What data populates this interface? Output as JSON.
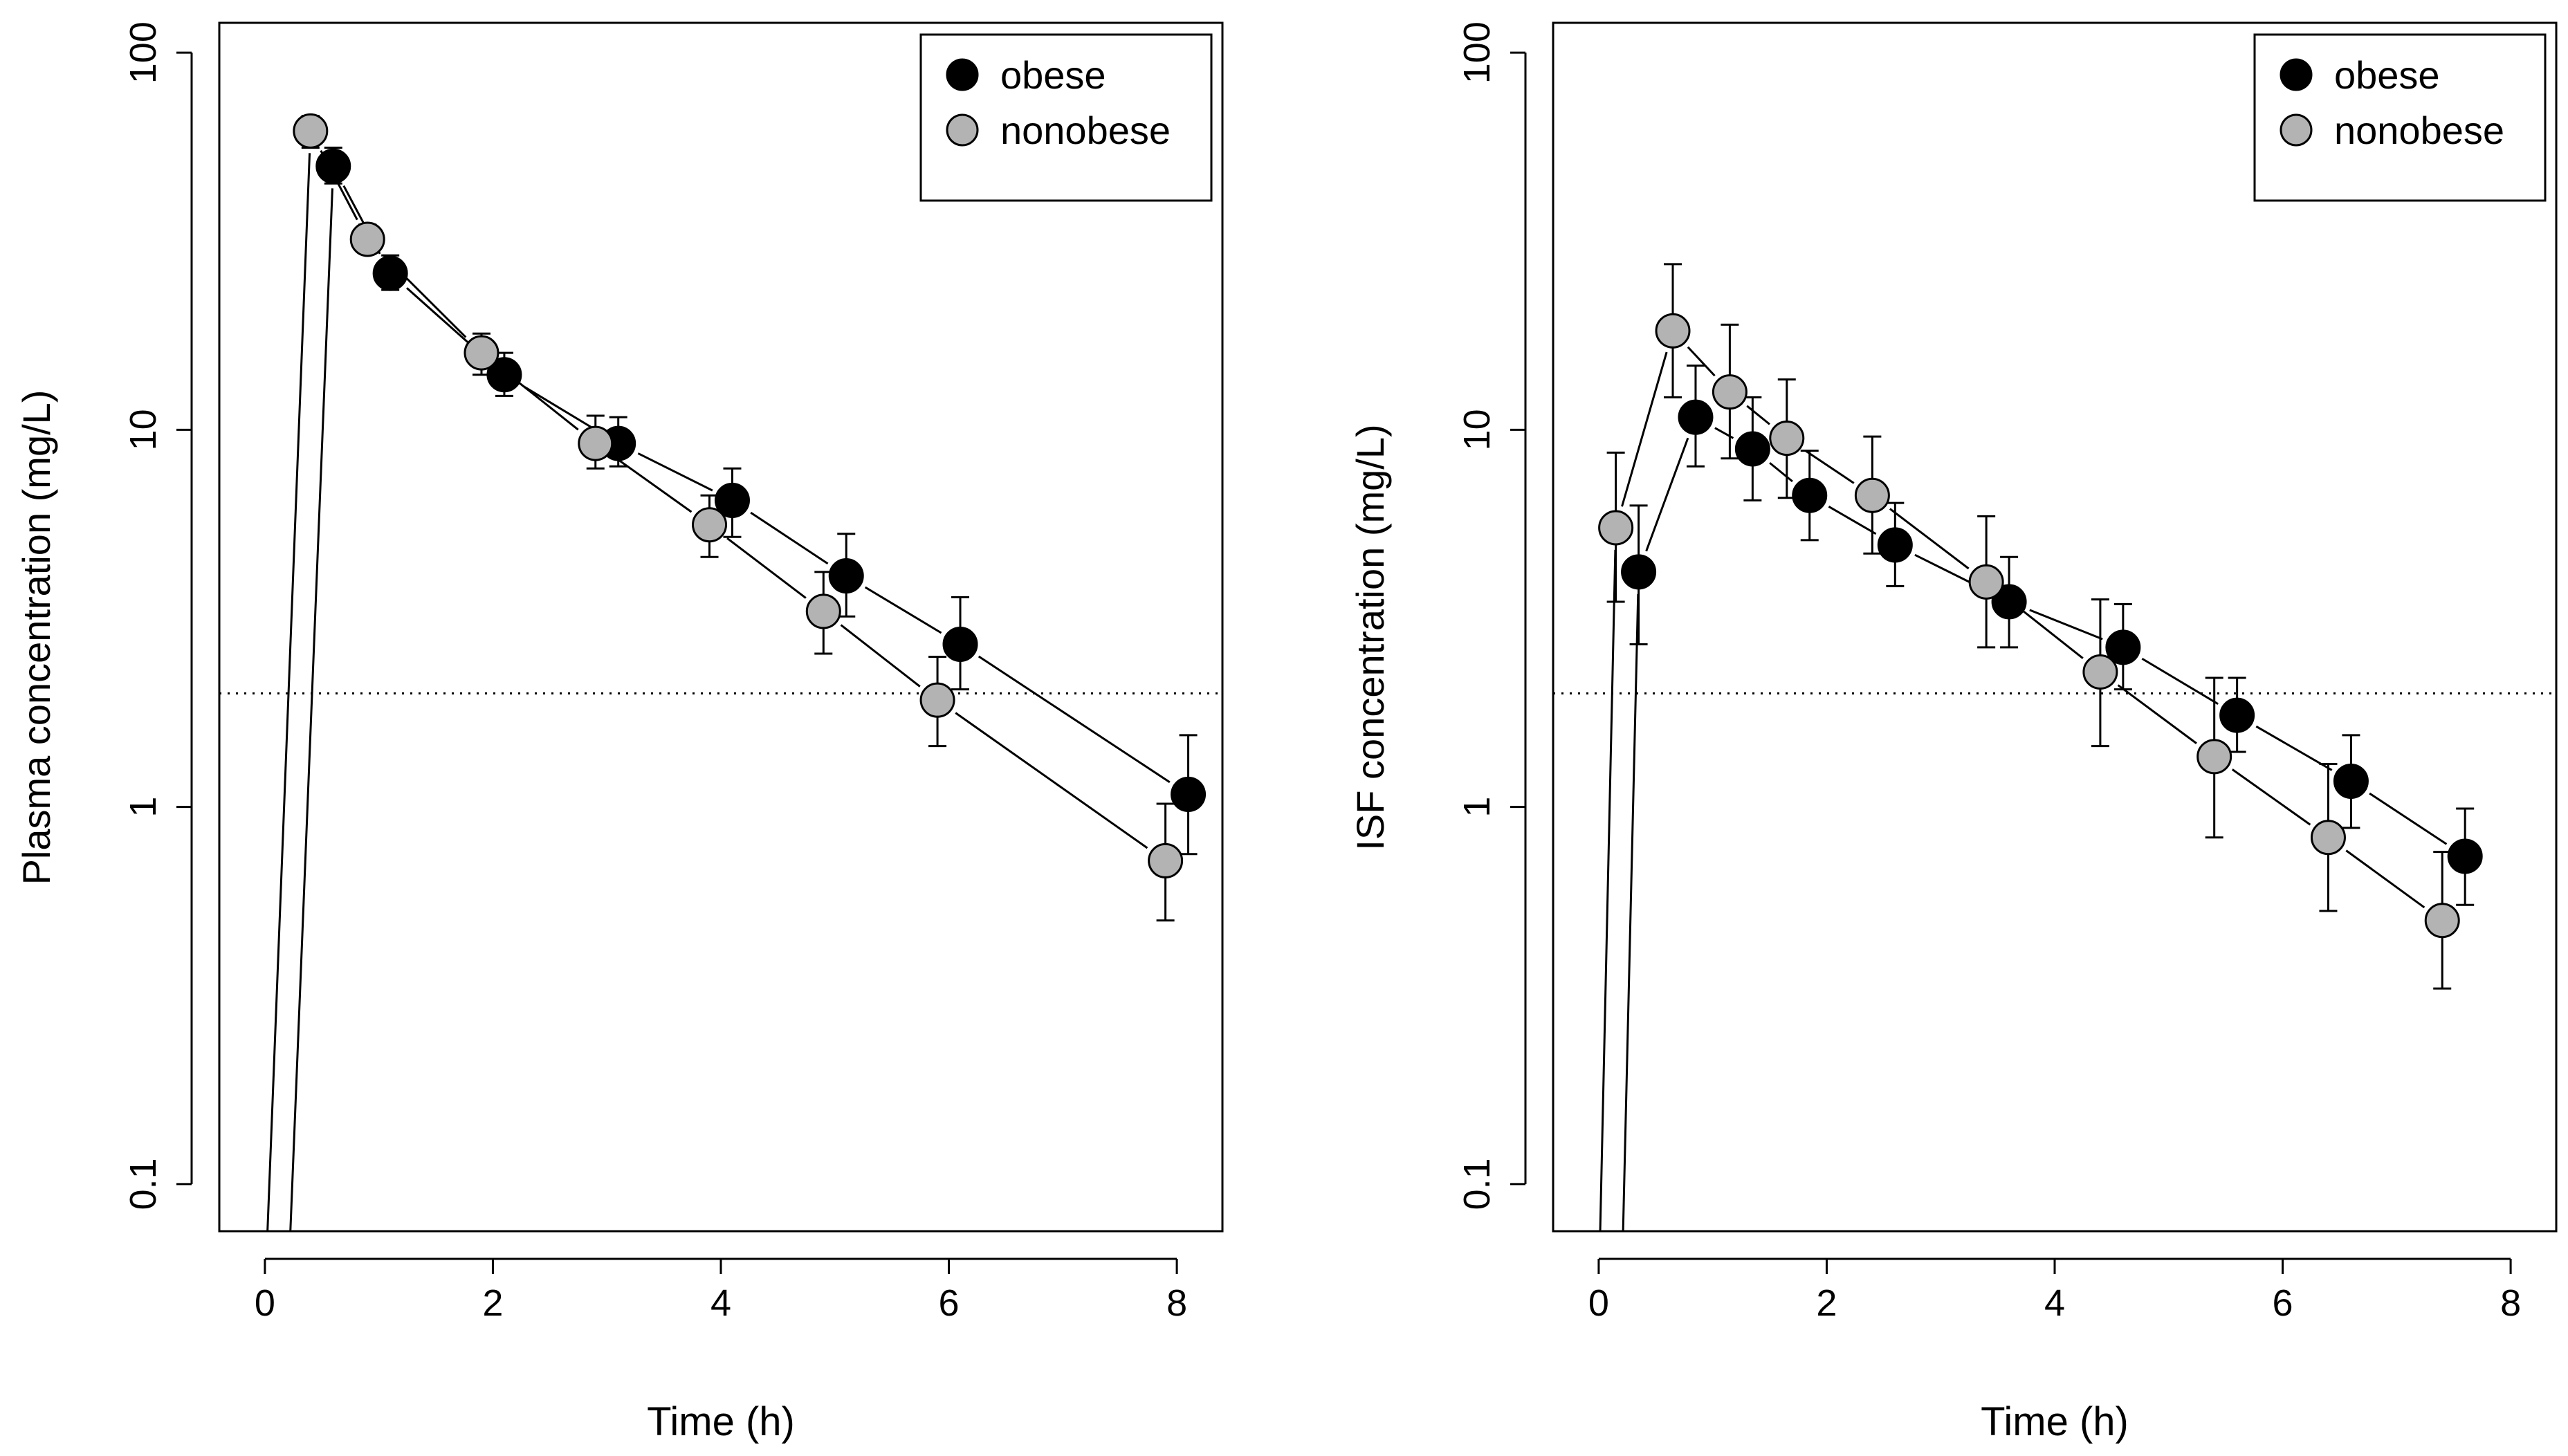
{
  "chart_data": [
    {
      "type": "line",
      "scale_y": "log",
      "xlabel": "Time (h)",
      "ylabel": "Plasma concentration (mg/L)",
      "xlim": [
        -0.4,
        8.4
      ],
      "ylim": [
        0.075,
        120
      ],
      "x_ticks": [
        0,
        2,
        4,
        6,
        8
      ],
      "x_tick_labels": [
        "0",
        "2",
        "4",
        "6",
        "8"
      ],
      "y_ticks": [
        0.1,
        1,
        10,
        100
      ],
      "y_tick_labels": [
        "0.1",
        "1",
        "10",
        "100"
      ],
      "reference_line": 2,
      "legend": {
        "position": "top-right",
        "entries": [
          "obese",
          "nonobese"
        ]
      },
      "series": [
        {
          "name": "obese",
          "color": "#000000",
          "points": [
            {
              "x": 0.6,
              "y": 50,
              "lo": 45,
              "hi": 56
            },
            {
              "x": 1.1,
              "y": 26,
              "lo": 23.5,
              "hi": 29
            },
            {
              "x": 2.1,
              "y": 14,
              "lo": 12.3,
              "hi": 16
            },
            {
              "x": 3.1,
              "y": 9.2,
              "lo": 8,
              "hi": 10.8
            },
            {
              "x": 4.1,
              "y": 6.5,
              "lo": 5.2,
              "hi": 7.9
            },
            {
              "x": 5.1,
              "y": 4.1,
              "lo": 3.2,
              "hi": 5.3
            },
            {
              "x": 6.1,
              "y": 2.7,
              "lo": 2.05,
              "hi": 3.6
            },
            {
              "x": 8.1,
              "y": 1.08,
              "lo": 0.75,
              "hi": 1.55
            }
          ],
          "line_start": {
            "x": 0.2,
            "y": 0.05
          }
        },
        {
          "name": "nonobese",
          "color": "#b3b3b3",
          "points": [
            {
              "x": 0.4,
              "y": 62,
              "lo": 56,
              "hi": 68
            },
            {
              "x": 0.9,
              "y": 32,
              "lo": 29.5,
              "hi": 35
            },
            {
              "x": 1.9,
              "y": 16,
              "lo": 14,
              "hi": 18
            },
            {
              "x": 2.9,
              "y": 9.2,
              "lo": 7.9,
              "hi": 10.9
            },
            {
              "x": 3.9,
              "y": 5.6,
              "lo": 4.6,
              "hi": 6.7
            },
            {
              "x": 4.9,
              "y": 3.3,
              "lo": 2.55,
              "hi": 4.2
            },
            {
              "x": 5.9,
              "y": 1.92,
              "lo": 1.45,
              "hi": 2.5
            },
            {
              "x": 7.9,
              "y": 0.72,
              "lo": 0.5,
              "hi": 1.02
            }
          ],
          "line_start": {
            "x": 0.0,
            "y": 0.05
          }
        }
      ]
    },
    {
      "type": "line",
      "scale_y": "log",
      "xlabel": "Time (h)",
      "ylabel": "ISF concentration (mg/L)",
      "xlim": [
        -0.4,
        8.4
      ],
      "ylim": [
        0.075,
        120
      ],
      "x_ticks": [
        0,
        2,
        4,
        6,
        8
      ],
      "x_tick_labels": [
        "0",
        "2",
        "4",
        "6",
        "8"
      ],
      "y_ticks": [
        0.1,
        1,
        10,
        100
      ],
      "y_tick_labels": [
        "0.1",
        "1",
        "10",
        "100"
      ],
      "reference_line": 2,
      "legend": {
        "position": "top-right",
        "entries": [
          "obese",
          "nonobese"
        ]
      },
      "series": [
        {
          "name": "obese",
          "color": "#000000",
          "points": [
            {
              "x": 0.35,
              "y": 4.2,
              "lo": 2.7,
              "hi": 6.3
            },
            {
              "x": 0.85,
              "y": 10.8,
              "lo": 8,
              "hi": 14.8
            },
            {
              "x": 1.35,
              "y": 8.9,
              "lo": 6.5,
              "hi": 12.2
            },
            {
              "x": 1.85,
              "y": 6.7,
              "lo": 5.1,
              "hi": 8.8
            },
            {
              "x": 2.6,
              "y": 4.95,
              "lo": 3.85,
              "hi": 6.4
            },
            {
              "x": 3.6,
              "y": 3.5,
              "lo": 2.65,
              "hi": 4.6
            },
            {
              "x": 4.6,
              "y": 2.65,
              "lo": 2.05,
              "hi": 3.45
            },
            {
              "x": 5.6,
              "y": 1.75,
              "lo": 1.4,
              "hi": 2.2
            },
            {
              "x": 6.6,
              "y": 1.17,
              "lo": 0.88,
              "hi": 1.55
            },
            {
              "x": 7.6,
              "y": 0.74,
              "lo": 0.55,
              "hi": 0.99
            }
          ],
          "line_start": {
            "x": 0.2,
            "y": 0.05
          }
        },
        {
          "name": "nonobese",
          "color": "#b3b3b3",
          "points": [
            {
              "x": 0.15,
              "y": 5.5,
              "lo": 3.5,
              "hi": 8.7
            },
            {
              "x": 0.65,
              "y": 18.3,
              "lo": 12.2,
              "hi": 27.5
            },
            {
              "x": 1.15,
              "y": 12.6,
              "lo": 8.4,
              "hi": 19
            },
            {
              "x": 1.65,
              "y": 9.5,
              "lo": 6.6,
              "hi": 13.6
            },
            {
              "x": 2.4,
              "y": 6.7,
              "lo": 4.7,
              "hi": 9.6
            },
            {
              "x": 3.4,
              "y": 3.95,
              "lo": 2.65,
              "hi": 5.9
            },
            {
              "x": 4.4,
              "y": 2.28,
              "lo": 1.45,
              "hi": 3.55
            },
            {
              "x": 5.4,
              "y": 1.36,
              "lo": 0.83,
              "hi": 2.2
            },
            {
              "x": 6.4,
              "y": 0.83,
              "lo": 0.53,
              "hi": 1.3
            },
            {
              "x": 7.4,
              "y": 0.5,
              "lo": 0.33,
              "hi": 0.76
            }
          ],
          "line_start": {
            "x": 0.0,
            "y": 0.05
          }
        }
      ]
    }
  ]
}
